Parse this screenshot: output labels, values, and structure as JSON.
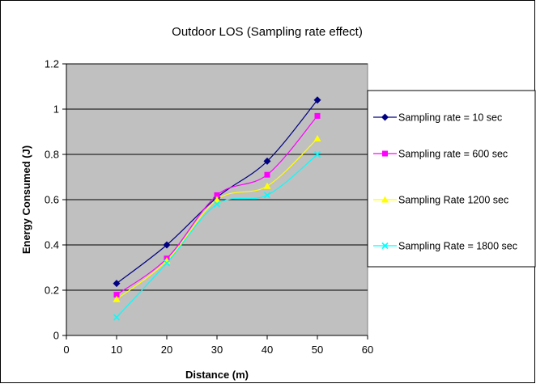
{
  "chart_data": {
    "type": "line",
    "title": "Outdoor LOS (Sampling rate effect)",
    "xlabel": "Distance (m)",
    "ylabel": "Energy Consumed (J)",
    "xlim": [
      0,
      60
    ],
    "ylim": [
      0,
      1.2
    ],
    "x_ticks": [
      "0",
      "10",
      "20",
      "30",
      "40",
      "50",
      "60"
    ],
    "y_ticks": [
      "0",
      "0.2",
      "0.4",
      "0.6",
      "0.8",
      "1",
      "1.2"
    ],
    "grid": "horizontal",
    "legend_position": "right",
    "plot_background": "#c0c0c0",
    "series": [
      {
        "name": "Sampling rate = 10 sec",
        "color": "#000080",
        "marker": "diamond",
        "x": [
          10,
          20,
          30,
          40,
          50
        ],
        "y": [
          0.23,
          0.4,
          0.61,
          0.77,
          1.04
        ]
      },
      {
        "name": "Sampling rate = 600 sec",
        "color": "#ff00ff",
        "marker": "square",
        "x": [
          10,
          20,
          30,
          40,
          50
        ],
        "y": [
          0.18,
          0.34,
          0.62,
          0.71,
          0.97
        ]
      },
      {
        "name": "Sampling Rate 1200 sec",
        "color": "#ffff00",
        "marker": "triangle",
        "x": [
          10,
          20,
          30,
          40,
          50
        ],
        "y": [
          0.16,
          0.33,
          0.6,
          0.66,
          0.87
        ]
      },
      {
        "name": "Sampling Rate = 1800 sec",
        "color": "#00ffff",
        "marker": "x",
        "x": [
          10,
          20,
          30,
          40,
          50
        ],
        "y": [
          0.08,
          0.32,
          0.58,
          0.62,
          0.8
        ]
      }
    ]
  }
}
